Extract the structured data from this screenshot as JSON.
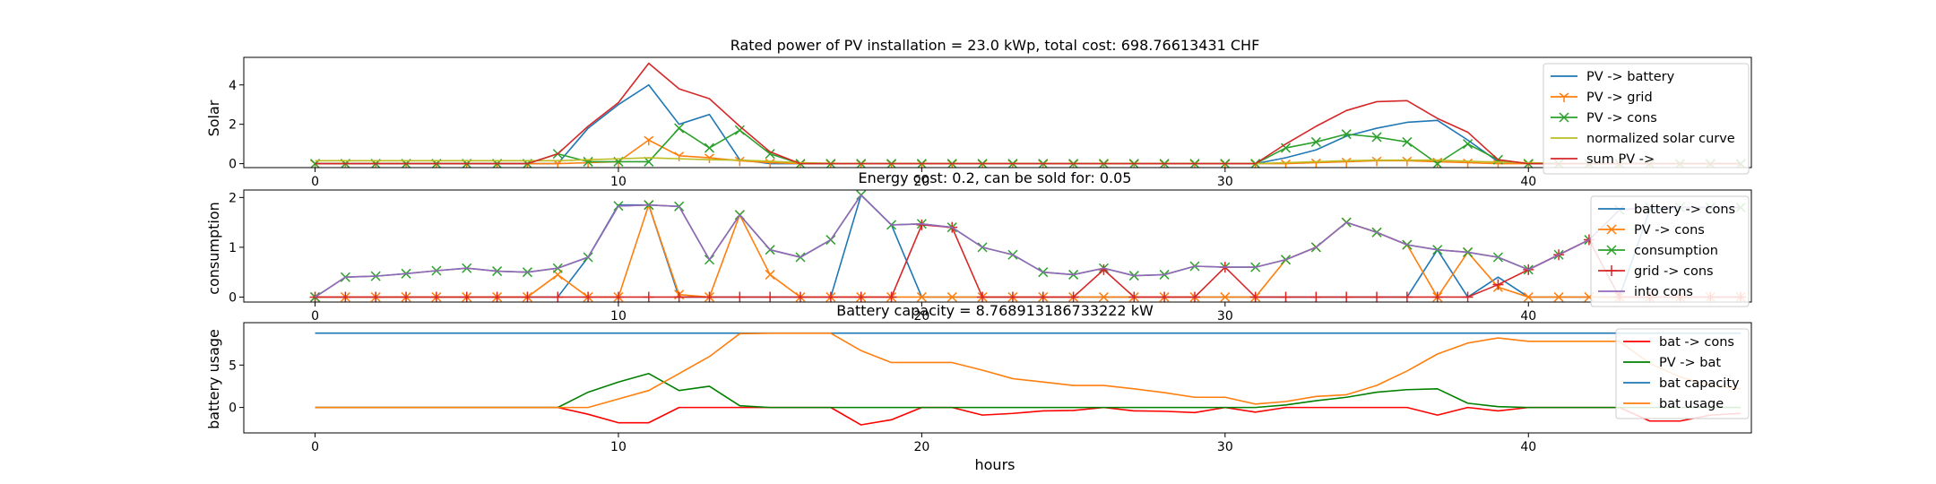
{
  "chart_data": [
    {
      "type": "line",
      "title": "Rated power of PV installation = 23.0 kWp, total cost: 698.76613431 CHF",
      "xlabel": "",
      "ylabel": "Solar",
      "xlim": [
        -2.35,
        47.35
      ],
      "ylim": [
        -0.2,
        5.4
      ],
      "xticks": [
        0,
        10,
        20,
        30,
        40
      ],
      "yticks": [
        0,
        2,
        4
      ],
      "legend_position": "upper right",
      "series": [
        {
          "name": "PV -> battery",
          "color": "#1f77b4",
          "marker": "none",
          "values": [
            0,
            0,
            0,
            0,
            0,
            0,
            0,
            0,
            0,
            1.8,
            3.0,
            4.0,
            2.0,
            2.5,
            0.2,
            0,
            0,
            0,
            0,
            0,
            0,
            0,
            0,
            0,
            0,
            0,
            0,
            0,
            0,
            0,
            0,
            0,
            0.3,
            0.7,
            1.4,
            1.8,
            2.1,
            2.2,
            1.2,
            0.1,
            0,
            0,
            0,
            0,
            0,
            0,
            0,
            0
          ]
        },
        {
          "name": "PV -> grid",
          "color": "#ff7f0e",
          "marker": "tri",
          "values": [
            0,
            0,
            0,
            0,
            0,
            0,
            0,
            0,
            0,
            0.05,
            0.1,
            1.2,
            0.4,
            0.3,
            0.15,
            0.05,
            0,
            0,
            0,
            0,
            0,
            0,
            0,
            0,
            0,
            0,
            0,
            0,
            0,
            0,
            0,
            0,
            0,
            0.05,
            0.1,
            0.15,
            0.15,
            0.1,
            0.05,
            0,
            0,
            0,
            0,
            0,
            0,
            0,
            0,
            0
          ]
        },
        {
          "name": "PV -> cons",
          "color": "#2ca02c",
          "marker": "x",
          "values": [
            0,
            0,
            0,
            0,
            0,
            0,
            0,
            0,
            0.5,
            0.1,
            0.1,
            0.1,
            1.8,
            0.8,
            1.7,
            0.5,
            0,
            0,
            0,
            0,
            0,
            0,
            0,
            0,
            0,
            0,
            0,
            0,
            0,
            0,
            0,
            0,
            0.8,
            1.1,
            1.5,
            1.35,
            1.1,
            0,
            1.0,
            0.2,
            0,
            0,
            0,
            0,
            0,
            0,
            0,
            0
          ]
        },
        {
          "name": "normalized solar curve",
          "color": "#bcbd22",
          "marker": "none",
          "values": [
            0.15,
            0.15,
            0.15,
            0.15,
            0.15,
            0.15,
            0.15,
            0.15,
            0.15,
            0.2,
            0.25,
            0.3,
            0.25,
            0.2,
            0.18,
            0.12,
            0.05,
            0.02,
            0,
            0,
            0,
            0,
            0,
            0,
            0,
            0,
            0,
            0,
            0,
            0,
            0,
            0,
            0.05,
            0.1,
            0.15,
            0.18,
            0.18,
            0.18,
            0.12,
            0.08,
            0.05,
            0.02,
            0,
            0,
            0,
            0,
            0,
            0
          ]
        },
        {
          "name": "sum PV ->",
          "color": "#d62728",
          "marker": "none",
          "values": [
            0,
            0,
            0,
            0,
            0,
            0,
            0,
            0,
            0.5,
            1.9,
            3.1,
            5.1,
            3.8,
            3.3,
            1.9,
            0.6,
            0,
            0,
            0,
            0,
            0,
            0,
            0,
            0,
            0,
            0,
            0,
            0,
            0,
            0,
            0,
            0,
            1.0,
            1.9,
            2.7,
            3.15,
            3.2,
            2.3,
            1.6,
            0.2,
            0,
            0,
            0,
            0,
            0,
            0,
            0,
            0
          ]
        }
      ]
    },
    {
      "type": "line",
      "title": "Energy cost: 0.2, can be sold for: 0.05",
      "xlabel": "",
      "ylabel": "consumption",
      "xlim": [
        -2.35,
        47.35
      ],
      "ylim": [
        -0.1,
        2.15
      ],
      "xticks": [
        0,
        10,
        20,
        30,
        40
      ],
      "yticks": [
        0,
        1,
        2
      ],
      "legend_position": "upper right",
      "series": [
        {
          "name": "battery -> cons",
          "color": "#1f77b4",
          "marker": "none",
          "values": [
            0,
            0,
            0,
            0,
            0,
            0,
            0,
            0,
            0,
            0.8,
            1.85,
            1.85,
            0,
            0,
            0,
            0,
            0,
            0,
            2.05,
            1.45,
            0,
            0,
            0,
            0,
            0,
            0,
            0,
            0,
            0,
            0,
            0,
            0,
            0,
            0,
            0,
            0,
            0,
            0.95,
            0,
            0.4,
            0,
            0,
            0,
            0,
            1.75,
            1.8,
            1.8,
            1.8
          ]
        },
        {
          "name": "PV -> cons",
          "color": "#ff7f0e",
          "marker": "x",
          "values": [
            0,
            0,
            0,
            0,
            0,
            0,
            0,
            0,
            0.45,
            0,
            0,
            1.85,
            0.05,
            0,
            1.65,
            0.45,
            0,
            0,
            0,
            0,
            0,
            0,
            0,
            0,
            0,
            0,
            0,
            0,
            0,
            0,
            0,
            0,
            0.75,
            1.0,
            1.5,
            1.3,
            1.05,
            0,
            0.9,
            0.2,
            0,
            0,
            0,
            0,
            0,
            0,
            0,
            0
          ]
        },
        {
          "name": "consumption",
          "color": "#2ca02c",
          "marker": "x",
          "values": [
            0,
            0.4,
            0.42,
            0.47,
            0.53,
            0.58,
            0.52,
            0.5,
            0.58,
            0.8,
            1.83,
            1.85,
            1.82,
            0.75,
            1.65,
            0.95,
            0.8,
            1.15,
            2.05,
            1.45,
            1.47,
            1.4,
            1.0,
            0.85,
            0.5,
            0.45,
            0.58,
            0.43,
            0.45,
            0.62,
            0.6,
            0.6,
            0.75,
            1.0,
            1.5,
            1.3,
            1.05,
            0.95,
            0.9,
            0.8,
            0.55,
            0.85,
            1.15,
            1.75,
            1.8,
            1.8,
            1.8,
            1.8
          ]
        },
        {
          "name": "grid -> cons",
          "color": "#d62728",
          "marker": "plus",
          "values": [
            0,
            0,
            0,
            0,
            0,
            0,
            0,
            0,
            0,
            0,
            0,
            0,
            0,
            0,
            0,
            0,
            0,
            0,
            0,
            0,
            1.45,
            1.4,
            0,
            0,
            0,
            0,
            0.55,
            0,
            0,
            0,
            0.6,
            0,
            0,
            0,
            0,
            0,
            0,
            0,
            0,
            0.25,
            0.55,
            0.85,
            1.15,
            0,
            0,
            0,
            0,
            0
          ]
        },
        {
          "name": "into cons",
          "color": "#9467bd",
          "marker": "none",
          "values": [
            0,
            0.4,
            0.42,
            0.47,
            0.53,
            0.58,
            0.52,
            0.5,
            0.58,
            0.8,
            1.83,
            1.85,
            1.82,
            0.75,
            1.65,
            0.95,
            0.8,
            1.15,
            2.05,
            1.45,
            1.47,
            1.4,
            1.0,
            0.85,
            0.5,
            0.45,
            0.58,
            0.43,
            0.45,
            0.62,
            0.6,
            0.6,
            0.75,
            1.0,
            1.5,
            1.3,
            1.05,
            0.95,
            0.9,
            0.8,
            0.55,
            0.85,
            1.15,
            1.75,
            1.8,
            1.8,
            1.8,
            1.8
          ]
        }
      ]
    },
    {
      "type": "line",
      "title": "Battery capacity = 8.768913186733222 kW",
      "xlabel": "hours",
      "ylabel": "battery usage",
      "xlim": [
        -2.35,
        47.35
      ],
      "ylim": [
        -3,
        10
      ],
      "xticks": [
        0,
        10,
        20,
        30,
        40
      ],
      "yticks": [
        0,
        5
      ],
      "legend_position": "upper right",
      "series": [
        {
          "name": "bat -> cons",
          "color": "#ff0000",
          "marker": "none",
          "values": [
            0,
            0,
            0,
            0,
            0,
            0,
            0,
            0,
            0,
            -0.8,
            -1.8,
            -1.8,
            0,
            0,
            0,
            0,
            0,
            0,
            -2.05,
            -1.45,
            0,
            0,
            -0.9,
            -0.7,
            -0.4,
            -0.35,
            0,
            -0.4,
            -0.45,
            -0.6,
            0,
            -0.55,
            0,
            0,
            0,
            0,
            0,
            -0.9,
            0,
            -0.4,
            0,
            0,
            0,
            0,
            -1.6,
            -1.6,
            -0.9,
            -0.7
          ]
        },
        {
          "name": "PV -> bat",
          "color": "#008000",
          "marker": "none",
          "values": [
            0,
            0,
            0,
            0,
            0,
            0,
            0,
            0,
            0,
            1.8,
            3.0,
            4.0,
            2.0,
            2.5,
            0.2,
            0,
            0,
            0,
            0,
            0,
            0,
            0,
            0,
            0,
            0,
            0,
            0,
            0,
            0,
            0,
            0,
            0,
            0.3,
            0.8,
            1.2,
            1.8,
            2.1,
            2.2,
            0.5,
            0.1,
            0,
            0,
            0,
            0,
            0,
            0,
            0,
            0
          ]
        },
        {
          "name": "bat capacity",
          "color": "#1f77b4",
          "marker": "none",
          "values": [
            8.77,
            8.77,
            8.77,
            8.77,
            8.77,
            8.77,
            8.77,
            8.77,
            8.77,
            8.77,
            8.77,
            8.77,
            8.77,
            8.77,
            8.77,
            8.77,
            8.77,
            8.77,
            8.77,
            8.77,
            8.77,
            8.77,
            8.77,
            8.77,
            8.77,
            8.77,
            8.77,
            8.77,
            8.77,
            8.77,
            8.77,
            8.77,
            8.77,
            8.77,
            8.77,
            8.77,
            8.77,
            8.77,
            8.77,
            8.77,
            8.77,
            8.77,
            8.77,
            8.77,
            8.77,
            8.77,
            8.77,
            8.77
          ]
        },
        {
          "name": "bat usage",
          "color": "#ff7f0e",
          "marker": "none",
          "values": [
            0,
            0,
            0,
            0,
            0,
            0,
            0,
            0,
            0,
            0,
            1,
            2,
            4,
            6,
            8.7,
            8.75,
            8.75,
            8.75,
            6.7,
            5.3,
            5.3,
            5.3,
            4.4,
            3.4,
            3.0,
            2.6,
            2.6,
            2.2,
            1.75,
            1.2,
            1.2,
            0.4,
            0.7,
            1.3,
            1.5,
            2.6,
            4.3,
            6.3,
            7.6,
            8.2,
            7.8,
            7.8,
            7.8,
            7.8,
            5.2,
            3.6,
            2.6,
            2.2
          ]
        }
      ]
    }
  ]
}
